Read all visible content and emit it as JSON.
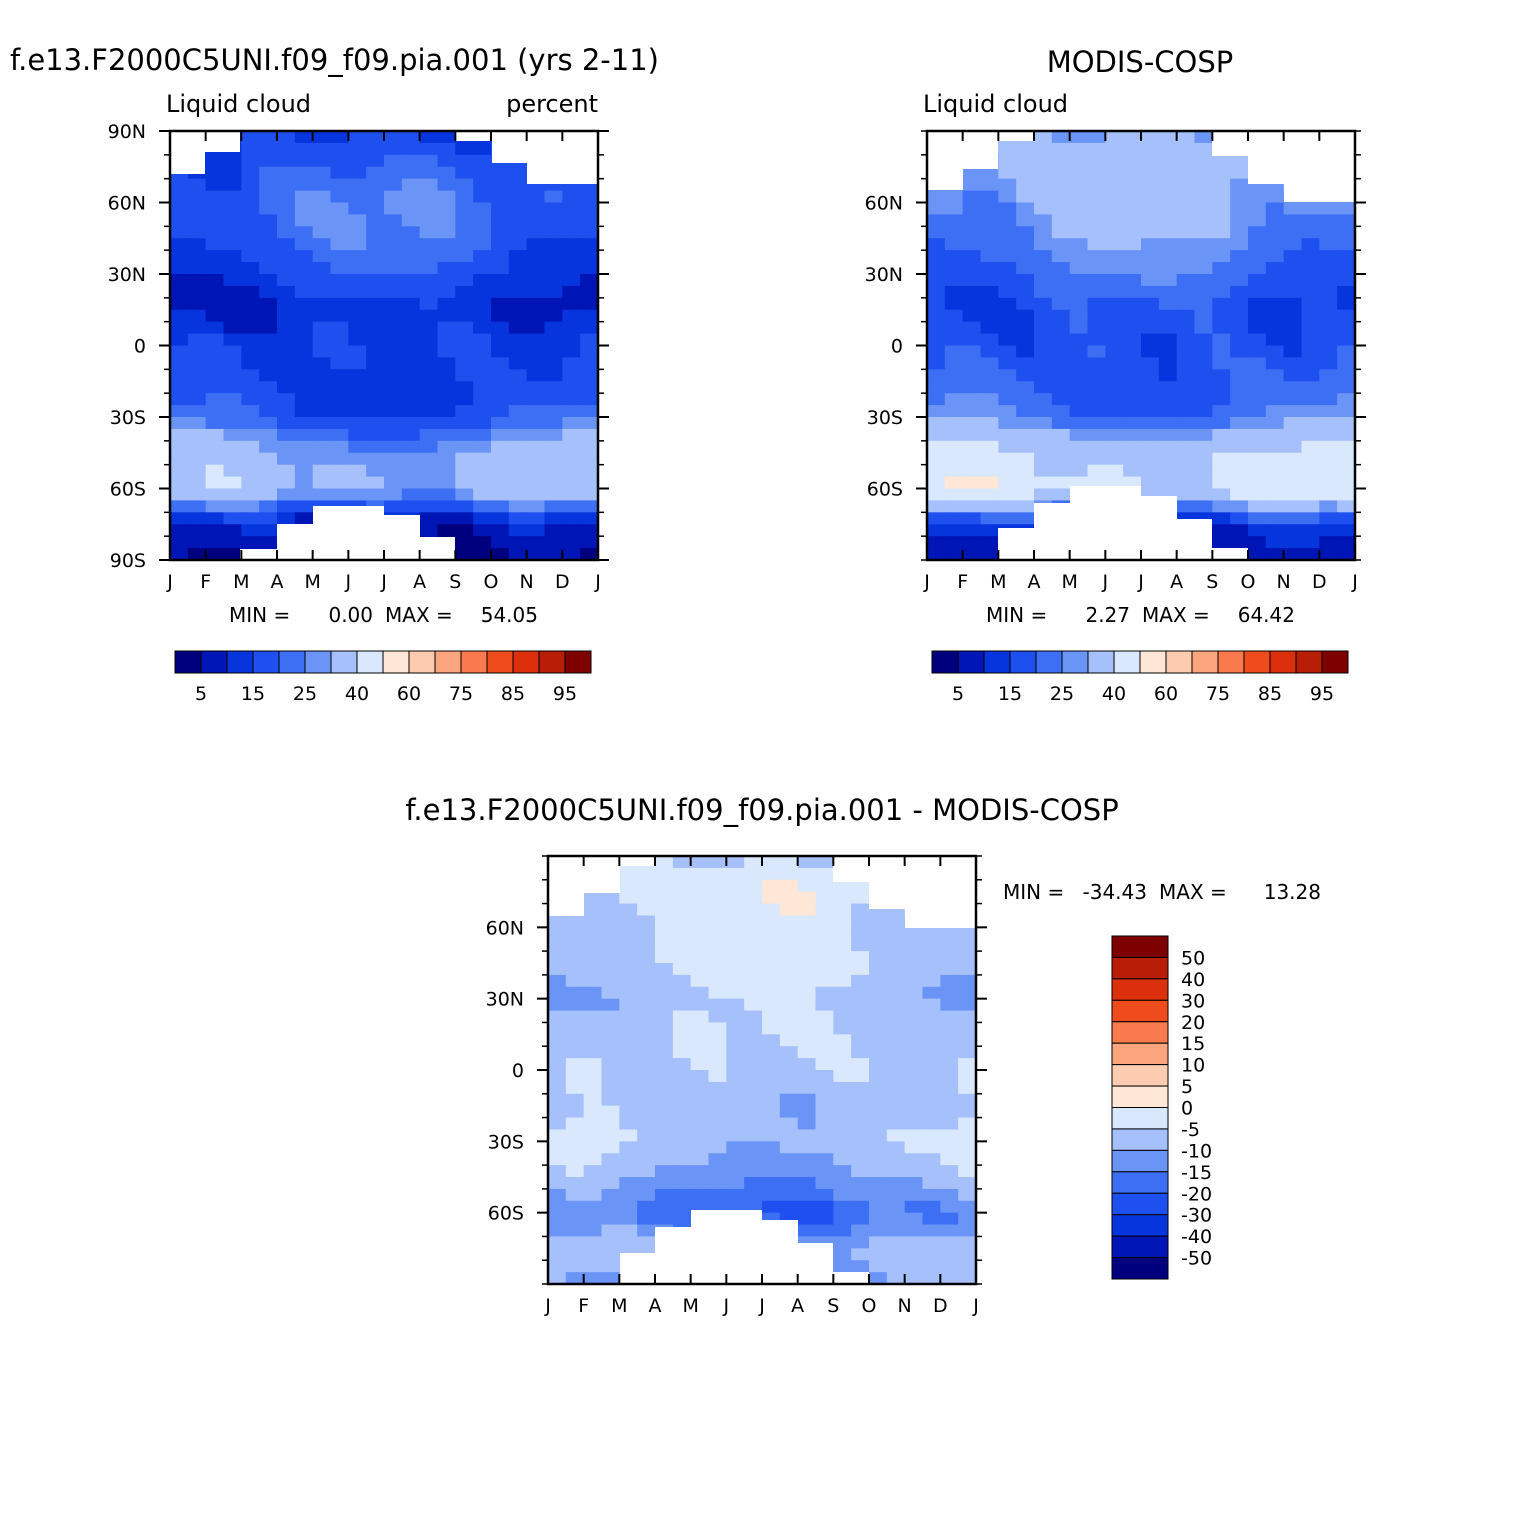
{
  "colors": {
    "model_obs_scale": [
      "#00007f",
      "#0015b6",
      "#0634dd",
      "#1e50f0",
      "#3c6ff4",
      "#6b94f7",
      "#a5c0fa",
      "#d9e8fd",
      "#fee7d6",
      "#fccbb0",
      "#fba57e",
      "#f97a4c",
      "#ef4c1d",
      "#dc2f0b",
      "#b81d06",
      "#7f0000"
    ],
    "diff_scale": [
      "#00007f",
      "#0015b6",
      "#0634dd",
      "#1e50f0",
      "#3c6ff4",
      "#6b94f7",
      "#a5c0fa",
      "#d9e8fd",
      "#fee7d6",
      "#fccbb0",
      "#fba57e",
      "#f97a4c",
      "#ef4c1d",
      "#dc2f0b",
      "#b81d06",
      "#7f0000"
    ]
  },
  "chart_data": [
    {
      "type": "heatmap",
      "title": "f.e13.F2000C5UNI.f09_f09.pia.001 (yrs 2-11)",
      "left_label": "Liquid cloud",
      "right_label": "percent",
      "x_ticks": [
        "J",
        "F",
        "M",
        "A",
        "M",
        "J",
        "J",
        "A",
        "S",
        "O",
        "N",
        "D",
        "J"
      ],
      "y_ticks": [
        "90N",
        "60N",
        "30N",
        "0",
        "30S",
        "60S",
        "90S"
      ],
      "min_label": "MIN =",
      "min_value": "0.00",
      "max_label": "MAX =",
      "max_value": "54.05",
      "legend_labels": [
        "5",
        "15",
        "25",
        "40",
        "60",
        "75",
        "85",
        "95"
      ],
      "profile": [
        {
          "lat": 90,
          "v": 14
        },
        {
          "lat": 75,
          "v": 18
        },
        {
          "lat": 60,
          "v": 22
        },
        {
          "lat": 45,
          "v": 20
        },
        {
          "lat": 30,
          "v": 15
        },
        {
          "lat": 15,
          "v": 10
        },
        {
          "lat": 0,
          "v": 14
        },
        {
          "lat": -15,
          "v": 15
        },
        {
          "lat": -30,
          "v": 18
        },
        {
          "lat": -45,
          "v": 32
        },
        {
          "lat": -60,
          "v": 35
        },
        {
          "lat": -75,
          "v": 8
        },
        {
          "lat": -90,
          "v": 4
        }
      ],
      "seasonal_amp": 6
    },
    {
      "type": "heatmap",
      "title": "MODIS-COSP",
      "left_label": "Liquid cloud",
      "x_ticks": [
        "J",
        "F",
        "M",
        "A",
        "M",
        "J",
        "J",
        "A",
        "S",
        "O",
        "N",
        "D",
        "J"
      ],
      "y_ticks": [
        "60N",
        "30N",
        "0",
        "30S",
        "60S"
      ],
      "min_label": "MIN =",
      "min_value": "2.27",
      "max_label": "MAX =",
      "max_value": "64.42",
      "legend_labels": [
        "5",
        "15",
        "25",
        "40",
        "60",
        "75",
        "85",
        "95"
      ],
      "profile": [
        {
          "lat": 90,
          "v": 30
        },
        {
          "lat": 75,
          "v": 33
        },
        {
          "lat": 60,
          "v": 30
        },
        {
          "lat": 45,
          "v": 26
        },
        {
          "lat": 30,
          "v": 21
        },
        {
          "lat": 15,
          "v": 16
        },
        {
          "lat": 0,
          "v": 17
        },
        {
          "lat": -15,
          "v": 20
        },
        {
          "lat": -30,
          "v": 24
        },
        {
          "lat": -45,
          "v": 40
        },
        {
          "lat": -60,
          "v": 46
        },
        {
          "lat": -75,
          "v": 12
        },
        {
          "lat": -90,
          "v": 6
        }
      ],
      "seasonal_amp": 6
    },
    {
      "type": "heatmap",
      "title": "f.e13.F2000C5UNI.f09_f09.pia.001 - MODIS-COSP",
      "x_ticks": [
        "J",
        "F",
        "M",
        "A",
        "M",
        "J",
        "J",
        "A",
        "S",
        "O",
        "N",
        "D",
        "J"
      ],
      "y_ticks": [
        "60N",
        "30N",
        "0",
        "30S",
        "60S"
      ],
      "min_label": "MIN =",
      "min_value": "-34.43",
      "max_label": "MAX =",
      "max_value": "13.28",
      "legend_labels": [
        "50",
        "40",
        "30",
        "20",
        "15",
        "10",
        "5",
        "0",
        "-5",
        "-10",
        "-15",
        "-20",
        "-30",
        "-40",
        "-50"
      ],
      "profile": [
        {
          "lat": 90,
          "v": -6
        },
        {
          "lat": 75,
          "v": -2
        },
        {
          "lat": 60,
          "v": -6
        },
        {
          "lat": 45,
          "v": -5
        },
        {
          "lat": 30,
          "v": -8
        },
        {
          "lat": 15,
          "v": -6
        },
        {
          "lat": 0,
          "v": -6
        },
        {
          "lat": -15,
          "v": -8
        },
        {
          "lat": -30,
          "v": -6
        },
        {
          "lat": -45,
          "v": -10
        },
        {
          "lat": -60,
          "v": -18
        },
        {
          "lat": -75,
          "v": -8
        },
        {
          "lat": -90,
          "v": -10
        }
      ],
      "seasonal_amp": 4
    }
  ]
}
